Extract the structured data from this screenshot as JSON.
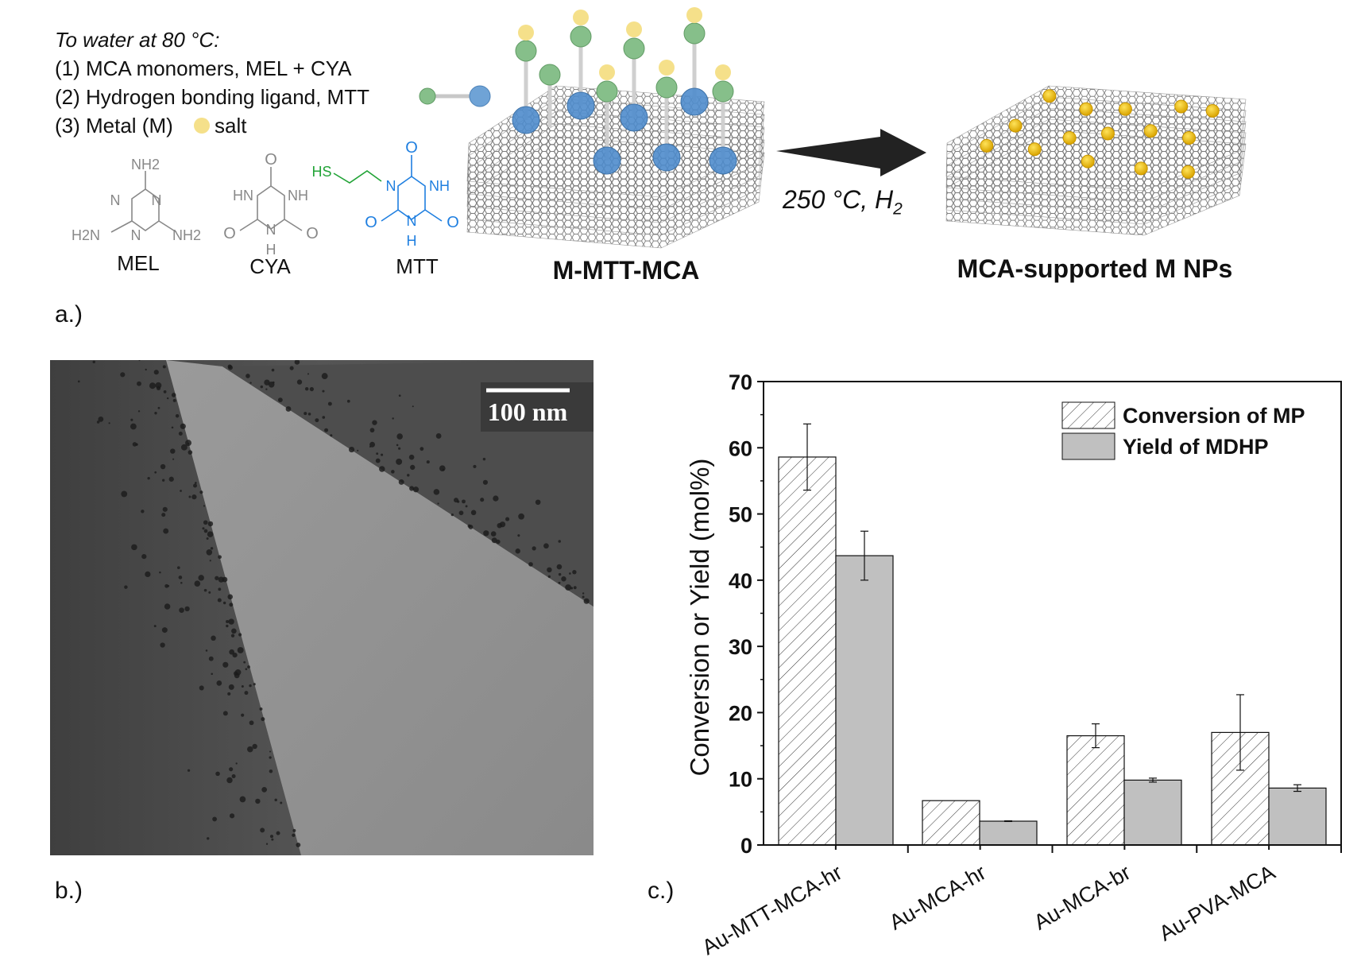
{
  "panel_a": {
    "label": "a.)",
    "intro": "To water at 80 °C:",
    "steps": [
      "(1) MCA monomers, MEL + CYA",
      "(2) Hydrogen bonding ligand, MTT",
      "(3) Metal (M)",
      "salt"
    ],
    "molecules": {
      "mel": {
        "name": "MEL",
        "atoms": [
          "NH2",
          "N",
          "N",
          "N",
          "H2N",
          "NH2"
        ]
      },
      "cya": {
        "name": "CYA",
        "atoms": [
          "O",
          "HN",
          "NH",
          "N",
          "H",
          "O",
          "O"
        ]
      },
      "mtt": {
        "name": "MTT",
        "atoms": [
          "HS",
          "O",
          "N",
          "NH",
          "N",
          "H",
          "O",
          "O"
        ]
      }
    },
    "colors": {
      "ligand_green": "#86bf8a",
      "ligand_blue": "#5b95cc",
      "metal_yellow": "#f5e08a",
      "np_gold": "#f2c21a",
      "mtt_blue": "#1f7fe0",
      "mtt_thiol_green": "#21a336"
    },
    "intermediate_label": "M-MTT-MCA",
    "condition": "250 °C, H",
    "condition_sub": "2",
    "product_label": "MCA-supported M NPs"
  },
  "panel_b": {
    "label": "b.)",
    "scale_bar": "100 nm"
  },
  "panel_c": {
    "label": "c.)"
  },
  "chart_data": {
    "type": "bar",
    "title": "",
    "xlabel": "",
    "ylabel": "Conversion or Yield (mol%)",
    "ylim": [
      0,
      70
    ],
    "yticks": [
      0,
      10,
      20,
      30,
      40,
      50,
      60,
      70
    ],
    "categories": [
      "Au-MTT-MCA-hr",
      "Au-MCA-hr",
      "Au-MCA-br",
      "Au-PVA-MCA"
    ],
    "series": [
      {
        "name": "Conversion of MP",
        "fill": "hatched",
        "values": [
          58.6,
          6.7,
          16.5,
          17.0
        ],
        "errors": [
          5.0,
          0,
          1.8,
          5.7
        ]
      },
      {
        "name": "Yield of MDHP",
        "fill": "#c0c0c0",
        "values": [
          43.7,
          3.6,
          9.8,
          8.6
        ],
        "errors": [
          3.7,
          0.05,
          0.3,
          0.5
        ]
      }
    ],
    "legend": "top-right",
    "grid": false
  }
}
